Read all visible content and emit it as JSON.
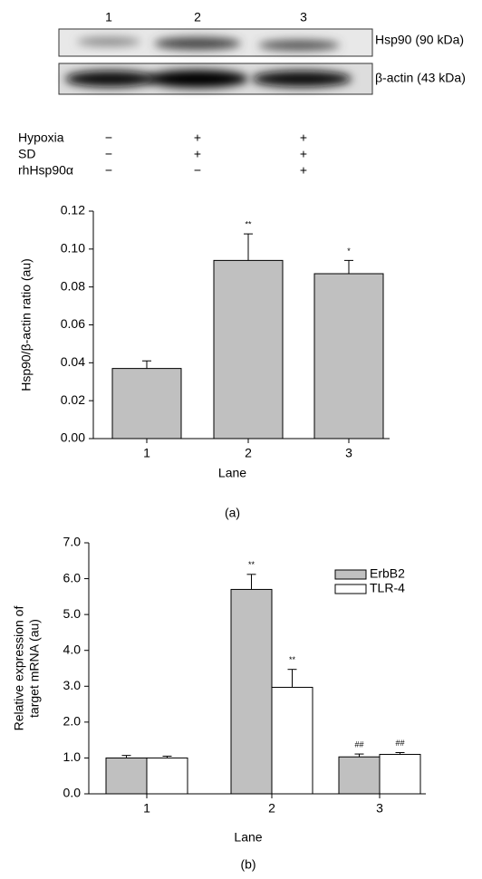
{
  "blot": {
    "lanes": [
      "1",
      "2",
      "3"
    ],
    "bands": [
      "Hsp90 (90 kDa)",
      "β-actin (43 kDa)"
    ],
    "conditions": [
      {
        "name": "Hypoxia",
        "marks": [
          "−",
          "+",
          "+"
        ]
      },
      {
        "name": "SD",
        "marks": [
          "−",
          "+",
          "+"
        ]
      },
      {
        "name": "rhHsp90α",
        "marks": [
          "−",
          "−",
          "+"
        ]
      }
    ]
  },
  "chart_data": [
    {
      "type": "bar",
      "panel": "(a)",
      "ylabel": [
        "Hsp90/β-actin ratio (au)"
      ],
      "xlabel": "Lane",
      "categories": [
        "1",
        "2",
        "3"
      ],
      "values": [
        0.037,
        0.094,
        0.087
      ],
      "errors": [
        0.004,
        0.014,
        0.007
      ],
      "annotations": [
        null,
        "**",
        "*"
      ],
      "color": "#c0c0c0",
      "ylim": [
        0,
        0.12
      ],
      "yticks": [
        {
          "value": 0,
          "label": "0.00"
        },
        {
          "value": 0.02,
          "label": "0.02"
        },
        {
          "value": 0.04,
          "label": "0.04"
        },
        {
          "value": 0.06,
          "label": "0.06"
        },
        {
          "value": 0.08,
          "label": "0.08"
        },
        {
          "value": 0.1,
          "label": "0.10"
        },
        {
          "value": 0.12,
          "label": "0.12"
        }
      ]
    },
    {
      "type": "bar",
      "panel": "(b)",
      "ylabel": [
        "Relative expression of",
        "target mRNA (au)"
      ],
      "xlabel": "Lane",
      "categories": [
        "1",
        "2",
        "3"
      ],
      "legend": "top-right",
      "series": [
        {
          "name": "ErbB2",
          "color": "#c0c0c0",
          "values": [
            1.0,
            5.7,
            1.03
          ],
          "errors": [
            0.07,
            0.42,
            0.08
          ],
          "annotations": [
            null,
            "**",
            "##"
          ]
        },
        {
          "name": "TLR-4",
          "color": "#ffffff",
          "values": [
            1.0,
            2.97,
            1.1
          ],
          "errors": [
            0.05,
            0.5,
            0.05
          ],
          "annotations": [
            null,
            "**",
            "##"
          ]
        }
      ],
      "ylim": [
        0,
        7
      ],
      "yticks": [
        {
          "value": 0,
          "label": "0.0"
        },
        {
          "value": 1,
          "label": "1.0"
        },
        {
          "value": 2,
          "label": "2.0"
        },
        {
          "value": 3,
          "label": "3.0"
        },
        {
          "value": 4,
          "label": "4.0"
        },
        {
          "value": 5,
          "label": "5.0"
        },
        {
          "value": 6,
          "label": "6.0"
        },
        {
          "value": 7,
          "label": "7.0"
        }
      ]
    }
  ]
}
